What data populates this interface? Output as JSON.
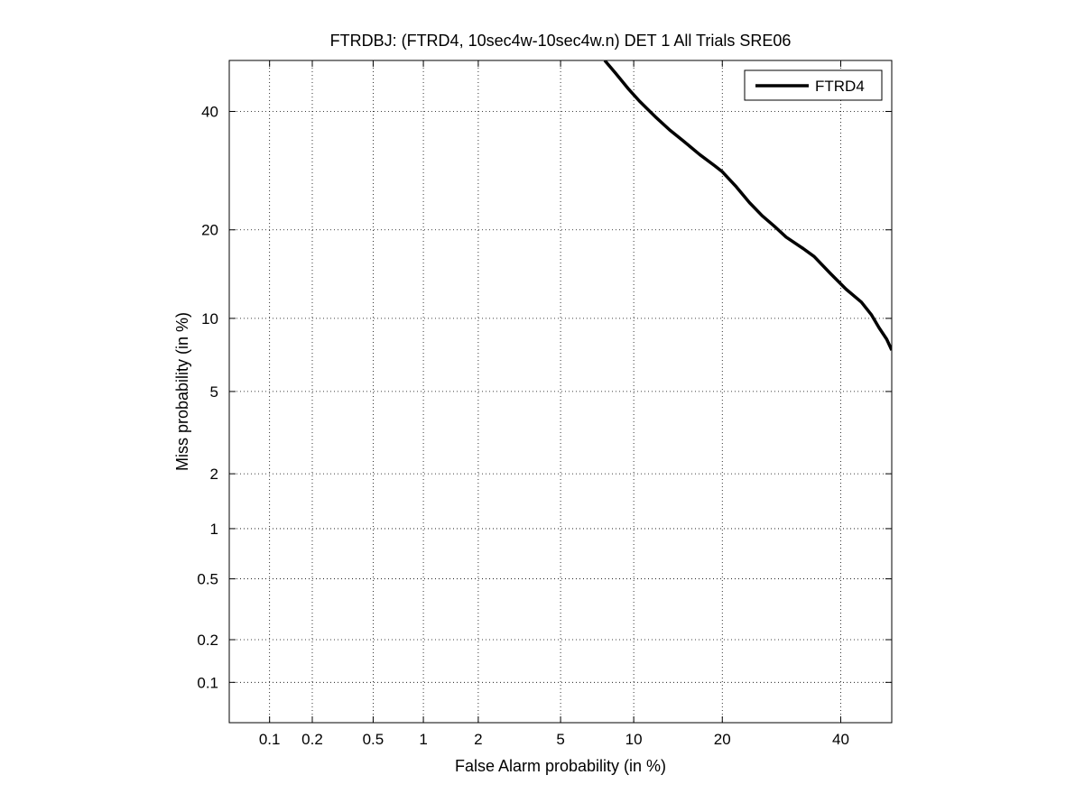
{
  "chart_data": {
    "type": "line",
    "title": "FTRDBJ: (FTRD4, 10sec4w-10sec4w.n) DET 1 All Trials SRE06",
    "xlabel": "False Alarm probability (in %)",
    "ylabel": "Miss probability (in %)",
    "x_scale": "normal-deviate (probit)",
    "y_scale": "normal-deviate (probit)",
    "xlim": [
      0.05,
      50
    ],
    "ylim": [
      0.05,
      50
    ],
    "x_ticks": [
      0.1,
      0.2,
      0.5,
      1,
      2,
      5,
      10,
      20,
      40
    ],
    "x_tick_labels": [
      "0.1",
      "0.2",
      "0.5",
      "1",
      "2",
      "5",
      "10",
      "20",
      "40"
    ],
    "y_ticks": [
      0.1,
      0.2,
      0.5,
      1,
      2,
      5,
      10,
      20,
      40
    ],
    "y_tick_labels": [
      "0.1",
      "0.2",
      "0.5",
      "1",
      "2",
      "5",
      "10",
      "20",
      "40"
    ],
    "grid": true,
    "legend_position": "top-right",
    "series": [
      {
        "name": "FTRD4",
        "color": "#000000",
        "x": [
          7.7,
          8.5,
          9.5,
          10.5,
          12,
          13.5,
          15,
          17,
          19,
          20,
          22,
          24,
          26,
          28,
          30,
          33,
          35,
          38,
          41,
          44,
          46,
          47.5,
          49,
          50
        ],
        "y": [
          50,
          47.5,
          44.5,
          42,
          39,
          36.5,
          34.5,
          32,
          30,
          29,
          26.5,
          24,
          22,
          20.5,
          19,
          17.5,
          16.5,
          14.5,
          12.8,
          11.5,
          10.3,
          9.2,
          8.3,
          7.5
        ]
      }
    ]
  }
}
